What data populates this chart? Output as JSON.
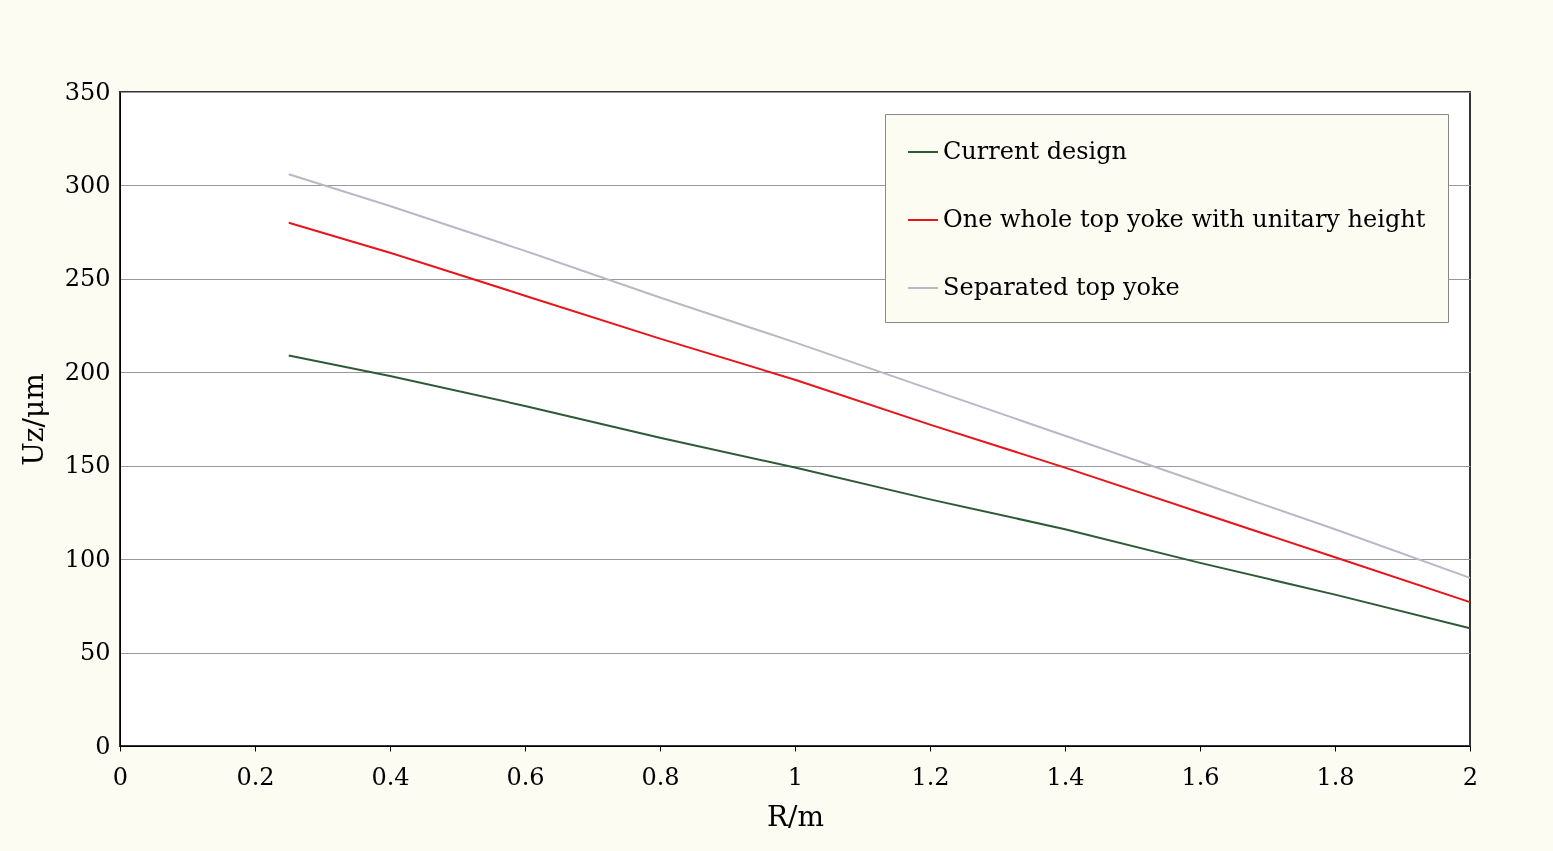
{
  "chart_data": {
    "type": "line",
    "xlabel": "R/m",
    "ylabel": "Uz/μm",
    "xlim": [
      0,
      2
    ],
    "xticks": [
      0,
      0.2,
      0.4,
      0.6,
      0.8,
      1,
      1.2,
      1.4,
      1.6,
      1.8,
      2
    ],
    "ylim": [
      0,
      350
    ],
    "yticks": [
      0,
      50,
      100,
      150,
      200,
      250,
      300,
      350
    ],
    "grid": "y",
    "legend": "top right",
    "marker": "none",
    "line_style": "solid",
    "series": [
      {
        "name": "Current design",
        "color": "#2f5a36",
        "x": [
          0.25,
          0.4,
          0.6,
          0.8,
          1.0,
          1.2,
          1.4,
          1.6,
          1.8,
          2.0
        ],
        "values": [
          209,
          198,
          182,
          165,
          149,
          132,
          116,
          98,
          81,
          63
        ]
      },
      {
        "name": "One whole top yoke with unitary height",
        "color": "#e8141a",
        "x": [
          0.25,
          0.4,
          0.6,
          0.8,
          1.0,
          1.2,
          1.4,
          1.6,
          1.8,
          2.0
        ],
        "values": [
          280,
          264,
          241,
          218,
          196,
          172,
          149,
          125,
          101,
          77
        ]
      },
      {
        "name": "Separated top yoke",
        "color": "#b8b8c8",
        "x": [
          0.25,
          0.4,
          0.6,
          0.8,
          1.0,
          1.2,
          1.4,
          1.6,
          1.8,
          2.0
        ],
        "values": [
          306,
          289,
          265,
          240,
          216,
          191,
          166,
          141,
          116,
          90
        ]
      }
    ]
  }
}
